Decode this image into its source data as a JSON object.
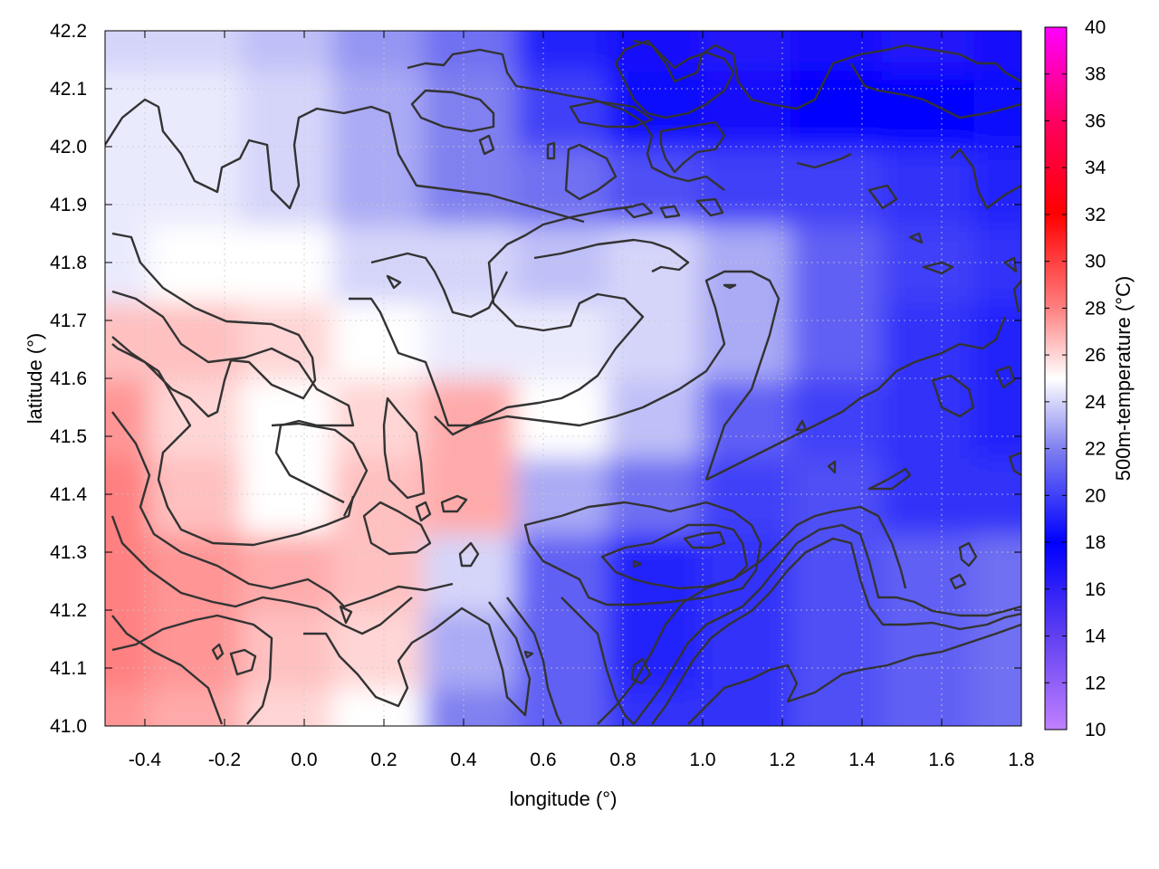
{
  "chart_data": {
    "type": "heatmap",
    "title": "",
    "xlabel": "longitude (°)",
    "ylabel": "latitude (°)",
    "colorbar_label": "500m-temperature (°C)",
    "xlim": [
      -0.5,
      1.8
    ],
    "ylim": [
      41.0,
      42.2
    ],
    "clim": [
      10,
      40
    ],
    "x_ticks": [
      -0.4,
      -0.2,
      0.0,
      0.2,
      0.4,
      0.6,
      0.8,
      1.0,
      1.2,
      1.4,
      1.6,
      1.8
    ],
    "x_tick_labels": [
      "-0.4",
      "-0.2",
      "0.0",
      "0.2",
      "0.4",
      "0.6",
      "0.8",
      "1.0",
      "1.2",
      "1.4",
      "1.6",
      "1.8"
    ],
    "y_ticks": [
      41.0,
      41.1,
      41.2,
      41.3,
      41.4,
      41.5,
      41.6,
      41.7,
      41.8,
      41.9,
      42.0,
      42.1,
      42.2
    ],
    "y_tick_labels": [
      "41.0",
      "41.1",
      "41.2",
      "41.3",
      "41.4",
      "41.5",
      "41.6",
      "41.7",
      "41.8",
      "41.9",
      "42.0",
      "42.1",
      "42.2"
    ],
    "colorbar_ticks": [
      10,
      12,
      14,
      16,
      18,
      20,
      22,
      24,
      26,
      28,
      30,
      32,
      34,
      36,
      38,
      40
    ],
    "colorbar_tick_labels": [
      "10",
      "12",
      "14",
      "16",
      "18",
      "20",
      "22",
      "24",
      "26",
      "28",
      "30",
      "32",
      "34",
      "36",
      "38",
      "40"
    ],
    "colormap": [
      {
        "value": 10,
        "color": "#c080ff"
      },
      {
        "value": 14,
        "color": "#6040f0"
      },
      {
        "value": 18,
        "color": "#0000ff"
      },
      {
        "value": 22,
        "color": "#8080f0"
      },
      {
        "value": 25,
        "color": "#ffffff"
      },
      {
        "value": 28,
        "color": "#ff8080"
      },
      {
        "value": 32,
        "color": "#ff0000"
      },
      {
        "value": 36,
        "color": "#ff0060"
      },
      {
        "value": 40,
        "color": "#ff00ff"
      }
    ],
    "field_samples": {
      "lon": [
        -0.5,
        -0.27,
        -0.04,
        0.19,
        0.42,
        0.65,
        0.88,
        1.11,
        1.34,
        1.57,
        1.8
      ],
      "lat": [
        41.0,
        41.133,
        41.267,
        41.4,
        41.533,
        41.667,
        41.8,
        41.933,
        42.067,
        42.2
      ],
      "temperature": [
        [
          27.5,
          27.0,
          26.0,
          25.0,
          22.0,
          21.0,
          19.5,
          19.5,
          20.5,
          21.0,
          21.5
        ],
        [
          28.0,
          27.5,
          26.5,
          26.0,
          23.0,
          21.0,
          19.0,
          19.5,
          20.5,
          21.0,
          21.5
        ],
        [
          28.0,
          27.5,
          27.0,
          26.5,
          24.0,
          21.0,
          19.0,
          19.5,
          20.5,
          21.0,
          21.5
        ],
        [
          28.0,
          26.5,
          25.0,
          26.5,
          27.0,
          23.0,
          21.5,
          20.0,
          20.5,
          19.5,
          19.5
        ],
        [
          27.5,
          26.0,
          25.0,
          26.0,
          27.0,
          25.0,
          23.5,
          21.0,
          20.0,
          19.5,
          19.0
        ],
        [
          26.5,
          26.5,
          26.0,
          25.0,
          24.5,
          24.5,
          24.0,
          23.0,
          21.0,
          19.5,
          19.0
        ],
        [
          24.5,
          25.0,
          25.0,
          24.0,
          24.0,
          23.5,
          24.0,
          23.0,
          21.0,
          20.0,
          19.5
        ],
        [
          24.5,
          24.5,
          24.0,
          23.0,
          22.0,
          21.5,
          20.5,
          20.0,
          20.0,
          19.5,
          19.0
        ],
        [
          24.5,
          24.5,
          24.0,
          23.0,
          22.0,
          20.0,
          17.5,
          17.0,
          18.0,
          18.0,
          18.5
        ],
        [
          24.0,
          24.0,
          23.5,
          22.5,
          21.5,
          19.0,
          17.0,
          16.5,
          17.0,
          16.5,
          17.0
        ]
      ]
    },
    "contours": "black isolines of terrain elevation overlaid on the temperature field",
    "grid": true,
    "legend": "colorbar right"
  }
}
